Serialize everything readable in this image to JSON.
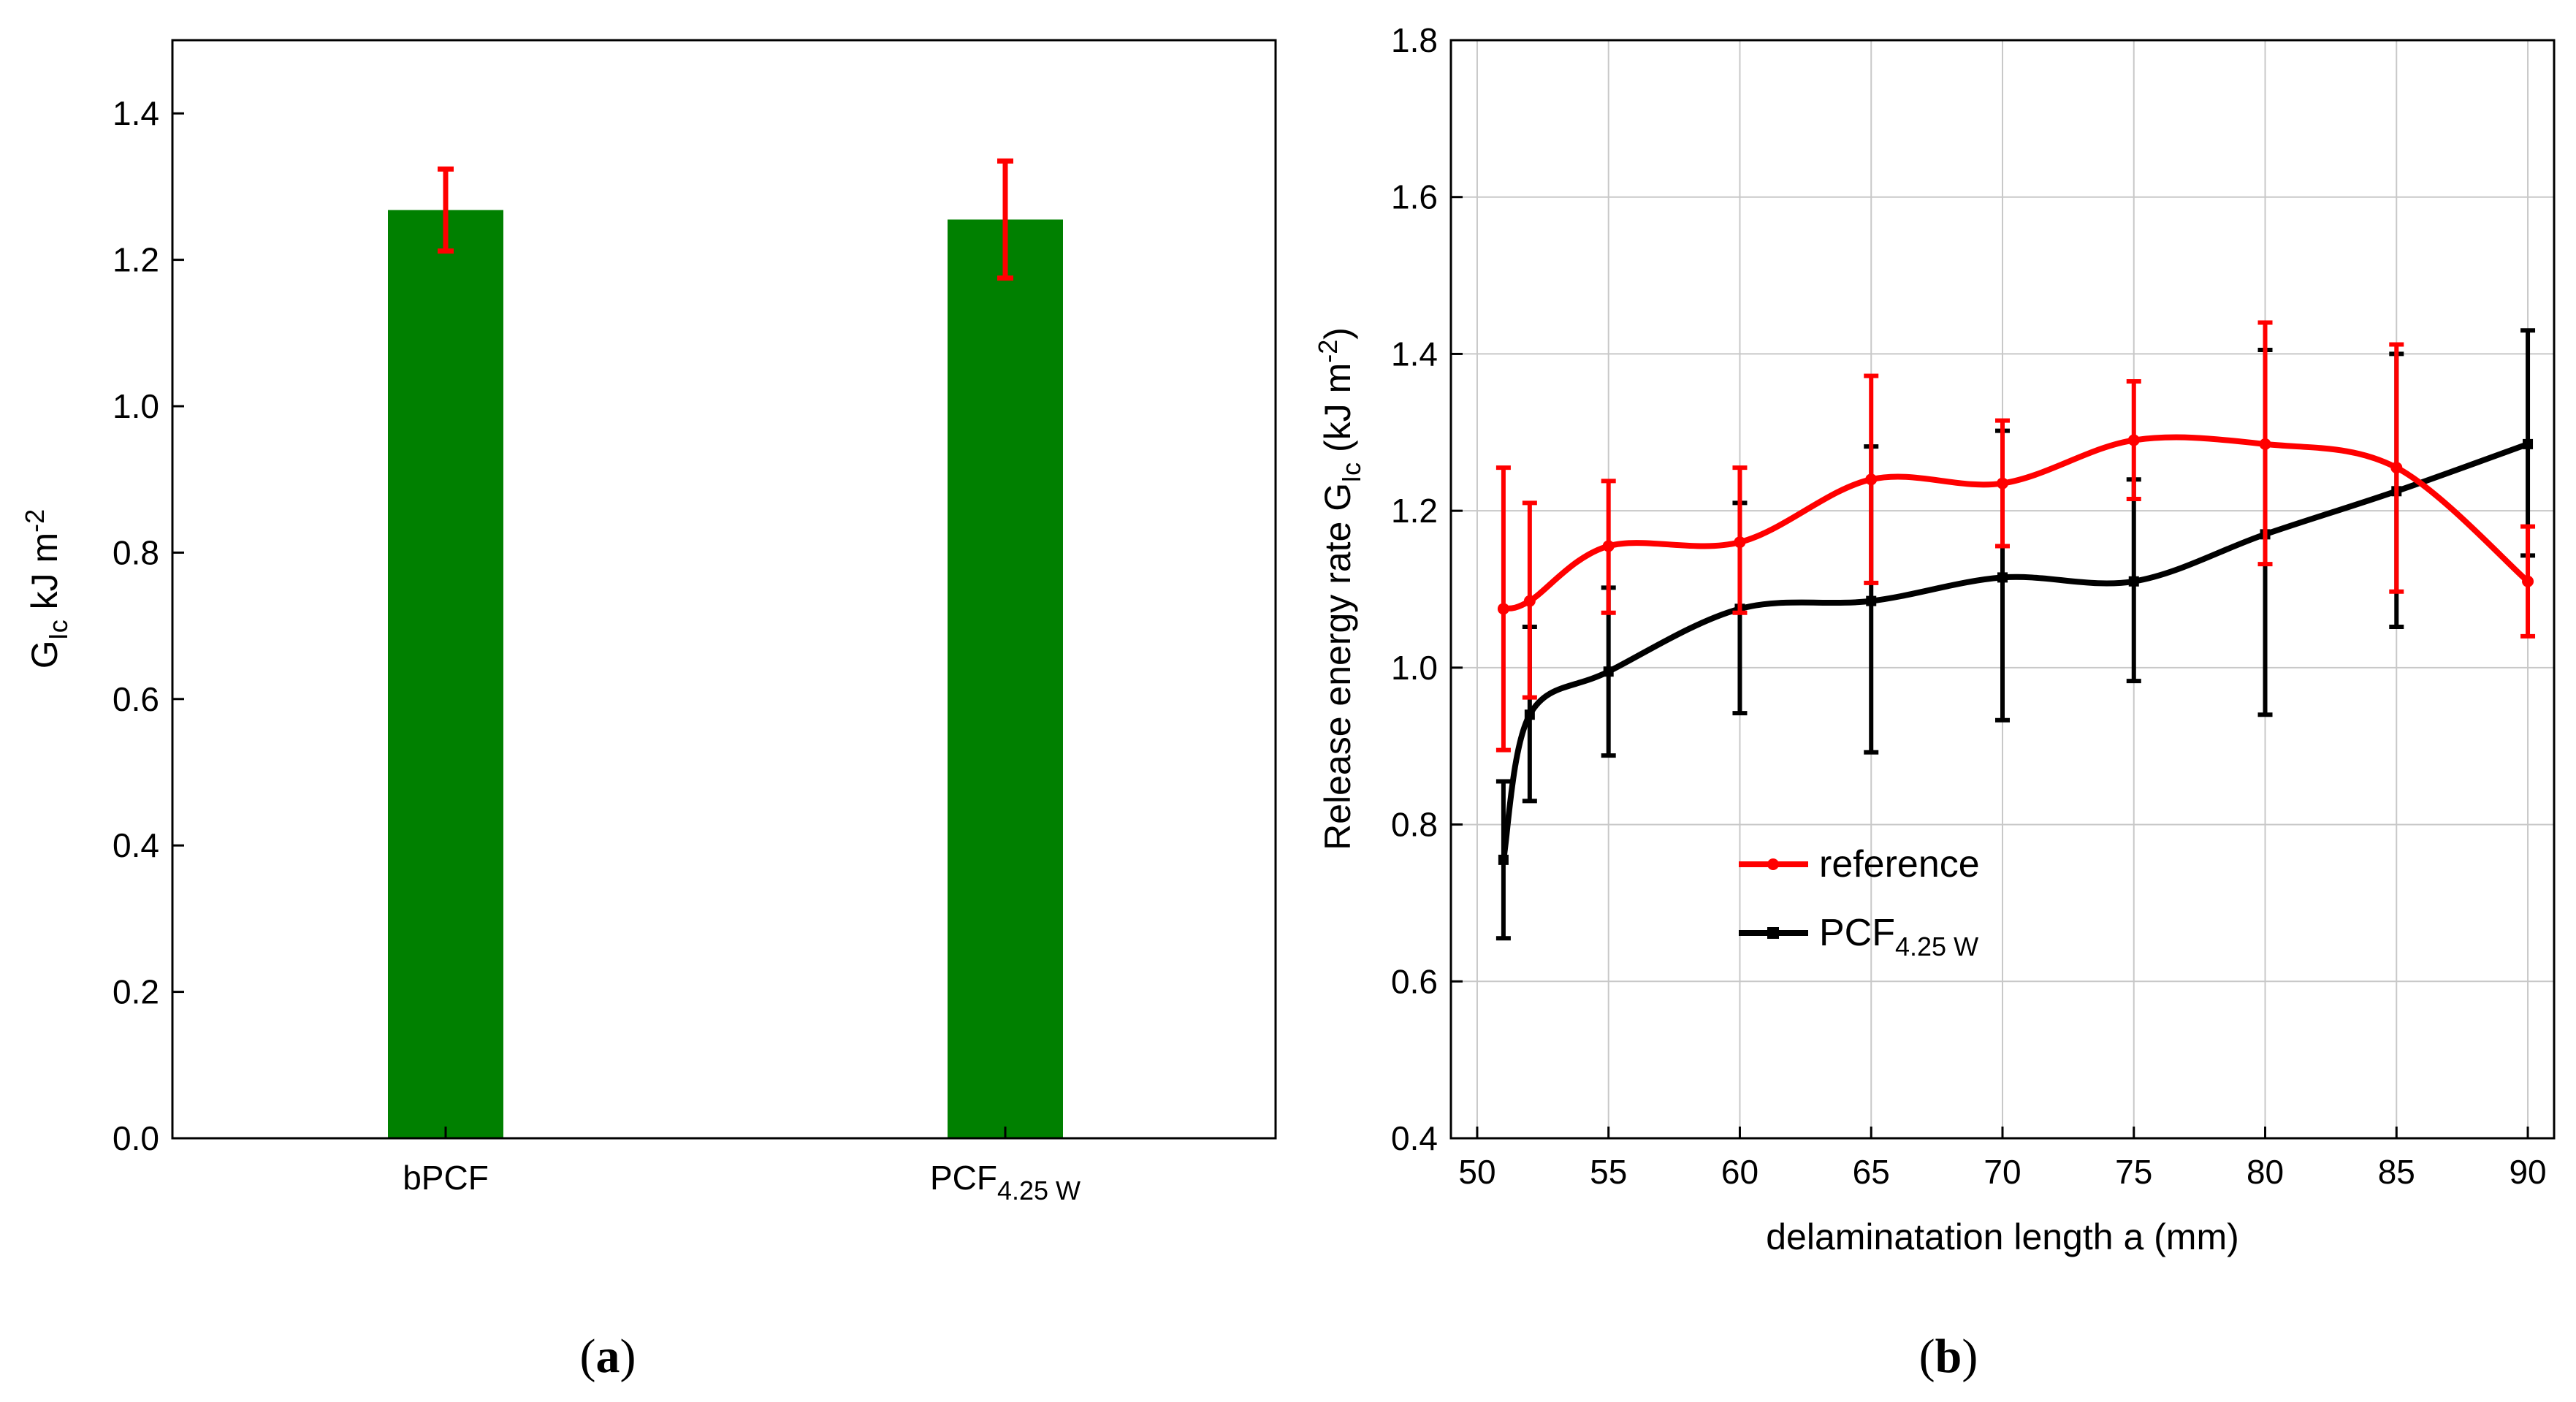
{
  "chart_data": [
    {
      "type": "bar",
      "panel_label": "a",
      "categories": [
        {
          "label": "bPCF",
          "sub": ""
        },
        {
          "label": "PCF",
          "sub": "4.25 W"
        }
      ],
      "values": [
        1.268,
        1.255
      ],
      "errors": [
        0.056,
        0.08
      ],
      "ylim": [
        0.0,
        1.5
      ],
      "yticks": [
        "0.0",
        "0.2",
        "0.4",
        "0.6",
        "0.8",
        "1.0",
        "1.2",
        "1.4"
      ],
      "ylabel": {
        "main": "G",
        "sub": "Ic",
        "rest": " kJ m",
        "sup": "-2"
      },
      "bar_color": "#008000",
      "error_color": "#ff0000",
      "grid": false
    },
    {
      "type": "line",
      "panel_label": "b",
      "xlim": [
        49,
        91
      ],
      "ylim": [
        0.4,
        1.8
      ],
      "xticks": [
        "50",
        "55",
        "60",
        "65",
        "70",
        "75",
        "80",
        "85",
        "90"
      ],
      "yticks": [
        "0.4",
        "0.6",
        "0.8",
        "1.0",
        "1.2",
        "1.4",
        "1.6",
        "1.8"
      ],
      "xlabel": "delaminatation length a (mm)",
      "ylabel": {
        "main": "Release energy rate G",
        "sub": "Ic",
        "rest": " (kJ m",
        "sup": "-2",
        "end": ")"
      },
      "grid": true,
      "legend_position": "center",
      "series": [
        {
          "name": "reference",
          "sub": "",
          "color": "#ff0000",
          "x": [
            51,
            52,
            55,
            60,
            65,
            70,
            75,
            80,
            85,
            90
          ],
          "y": [
            1.075,
            1.085,
            1.155,
            1.16,
            1.24,
            1.235,
            1.29,
            1.285,
            1.255,
            1.11
          ],
          "err_low": [
            0.895,
            0.962,
            1.07,
            1.07,
            1.108,
            1.155,
            1.215,
            1.132,
            1.097,
            1.04
          ],
          "err_high": [
            1.255,
            1.21,
            1.238,
            1.255,
            1.372,
            1.315,
            1.365,
            1.44,
            1.412,
            1.18
          ]
        },
        {
          "name": "PCF",
          "sub": "4.25 W",
          "color": "#000000",
          "x": [
            51,
            52,
            55,
            60,
            65,
            70,
            75,
            80,
            85,
            90
          ],
          "y": [
            0.755,
            0.94,
            0.995,
            1.075,
            1.085,
            1.115,
            1.11,
            1.17,
            1.225,
            1.285
          ],
          "err_low": [
            0.655,
            0.83,
            0.888,
            0.942,
            0.892,
            0.933,
            0.983,
            0.94,
            1.052,
            1.143
          ],
          "err_high": [
            0.855,
            1.052,
            1.102,
            1.21,
            1.282,
            1.302,
            1.24,
            1.405,
            1.4,
            1.43
          ]
        }
      ]
    }
  ]
}
